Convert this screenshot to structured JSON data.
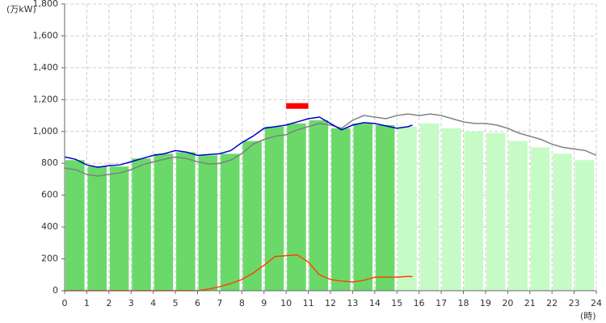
{
  "chart_data": {
    "type": "combo",
    "y_unit": "(万kW)",
    "x_unit": "(時)",
    "xlim": [
      0,
      24
    ],
    "ylim": [
      0,
      1800
    ],
    "xticks": [
      0,
      1,
      2,
      3,
      4,
      5,
      6,
      7,
      8,
      9,
      10,
      11,
      12,
      13,
      14,
      15,
      16,
      17,
      18,
      19,
      20,
      21,
      22,
      23,
      24
    ],
    "yticks": [
      0,
      200,
      400,
      600,
      800,
      {
        "value": 1000,
        "label": "1,000"
      },
      {
        "value": 1200,
        "label": "1,200"
      },
      {
        "value": 1400,
        "label": "1,400"
      },
      {
        "value": 1600,
        "label": "1,600"
      },
      {
        "value": 1800,
        "label": "1,800"
      }
    ],
    "grid": true,
    "bar_series": [
      {
        "color": "#6ad96a",
        "x": [
          0,
          1,
          2,
          3,
          4,
          5,
          6,
          7,
          8,
          9,
          10,
          11,
          12,
          13,
          14
        ],
        "values": [
          820,
          780,
          780,
          830,
          860,
          870,
          850,
          860,
          940,
          1030,
          1050,
          1070,
          1020,
          1050,
          1040
        ]
      },
      {
        "color": "#c6fbc6",
        "x": [
          15,
          16,
          17,
          18,
          19,
          20,
          21,
          22,
          23
        ],
        "values": [
          1030,
          1050,
          1020,
          1000,
          990,
          940,
          900,
          860,
          820
        ]
      }
    ],
    "line_series": [
      {
        "color": "#808080",
        "x": [
          0,
          0.5,
          1,
          1.5,
          2,
          2.5,
          3,
          3.5,
          4,
          4.5,
          5,
          5.5,
          6,
          6.5,
          7,
          7.5,
          8,
          8.5,
          9,
          9.5,
          10,
          10.5,
          11,
          11.5,
          12,
          12.5,
          13,
          13.5,
          14,
          14.5,
          15,
          15.5,
          16,
          16.5,
          17,
          17.5,
          18,
          18.5,
          19,
          19.5,
          20,
          20.5,
          21,
          21.5,
          22,
          22.5,
          23,
          23.5,
          24
        ],
        "values": [
          770,
          760,
          730,
          720,
          730,
          740,
          760,
          790,
          810,
          825,
          840,
          830,
          810,
          795,
          800,
          820,
          860,
          920,
          950,
          970,
          980,
          1010,
          1030,
          1050,
          1040,
          1020,
          1070,
          1100,
          1090,
          1080,
          1100,
          1110,
          1100,
          1110,
          1100,
          1080,
          1060,
          1050,
          1050,
          1040,
          1020,
          990,
          970,
          950,
          920,
          900,
          890,
          880,
          850
        ]
      },
      {
        "color": "#0000cc",
        "x": [
          0,
          0.5,
          1,
          1.5,
          2,
          2.5,
          3,
          3.5,
          4,
          4.5,
          5,
          5.5,
          6,
          6.5,
          7,
          7.5,
          8,
          8.5,
          9,
          9.5,
          10,
          10.5,
          11,
          11.5,
          12,
          12.5,
          13,
          13.5,
          14,
          14.5,
          15,
          15.5,
          15.7
        ],
        "values": [
          840,
          825,
          790,
          775,
          785,
          790,
          810,
          830,
          850,
          860,
          880,
          870,
          850,
          855,
          860,
          880,
          930,
          970,
          1020,
          1030,
          1040,
          1060,
          1080,
          1090,
          1050,
          1010,
          1040,
          1055,
          1050,
          1035,
          1020,
          1030,
          1040
        ]
      },
      {
        "color": "#ff4400",
        "x": [
          0,
          1,
          2,
          3,
          4,
          5,
          6,
          6.5,
          7,
          7.5,
          8,
          8.5,
          9,
          9.5,
          10,
          10.5,
          11,
          11.5,
          12,
          12.5,
          13,
          13.5,
          14,
          14.5,
          15,
          15.5,
          15.7
        ],
        "values": [
          0,
          0,
          0,
          0,
          0,
          0,
          0,
          10,
          25,
          45,
          70,
          110,
          160,
          215,
          220,
          225,
          180,
          100,
          70,
          60,
          55,
          65,
          85,
          85,
          85,
          90,
          88
        ]
      }
    ],
    "peak_marker": {
      "x": [
        10,
        11
      ],
      "value": 1160,
      "color": "#ff0000"
    }
  }
}
